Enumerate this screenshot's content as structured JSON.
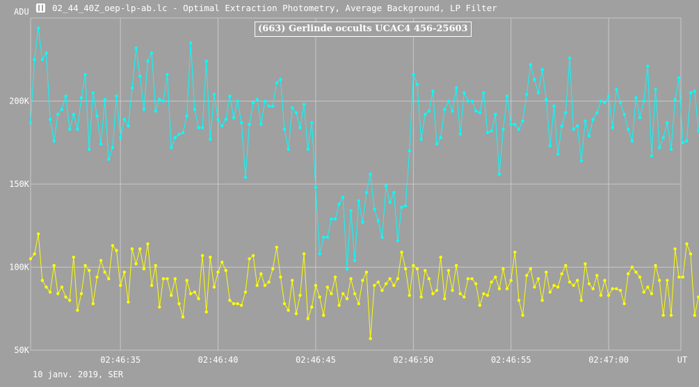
{
  "header": {
    "title": "02_44_40Z_oep-lp-ab.lc - Optimal Extraction Photometry, Average Background, LP Filter",
    "icon": "lightcurve-app-icon"
  },
  "footer": {
    "text": "10 janv. 2019, SER"
  },
  "colors": {
    "background": "#a0a0a0",
    "grid": "#c8c8c8",
    "series_cyan": "#00ffff",
    "series_yellow": "#ffff00",
    "text": "#ffffff"
  },
  "chart_data": {
    "type": "line",
    "title": "(663) Gerlinde occults UCAC4 456-25603",
    "ylabel": "ADU",
    "xlabel": "UT",
    "ylim": [
      50000,
      250000
    ],
    "xlim": [
      "02:46:30.4",
      "02:47:03.7"
    ],
    "x_ticks": [
      "02:46:35",
      "02:46:40",
      "02:46:45",
      "02:46:50",
      "02:46:55",
      "02:47:00"
    ],
    "y_ticks": [
      {
        "value": 50000,
        "label": "50K"
      },
      {
        "value": 100000,
        "label": "100K"
      },
      {
        "value": 150000,
        "label": "150K"
      },
      {
        "value": 200000,
        "label": "200K"
      }
    ],
    "grid": true,
    "x_start": "02:46:30.4",
    "x_step_s": 0.2,
    "series": [
      {
        "color": "#00ffff",
        "values": [
          187000,
          225000,
          244000,
          225000,
          229000,
          189000,
          176000,
          192000,
          195000,
          203000,
          183000,
          192000,
          183000,
          202000,
          216000,
          171000,
          205000,
          191000,
          174000,
          201000,
          165000,
          172000,
          203000,
          178000,
          189000,
          185000,
          208000,
          232000,
          215000,
          195000,
          224000,
          229000,
          194000,
          201000,
          200000,
          216000,
          172000,
          178000,
          180000,
          181000,
          191000,
          235000,
          195000,
          184000,
          184000,
          224000,
          177000,
          204000,
          189000,
          185000,
          189000,
          203000,
          190000,
          200000,
          187000,
          154000,
          186000,
          199000,
          201000,
          186000,
          200000,
          197000,
          197000,
          211000,
          213000,
          183000,
          171000,
          196000,
          193000,
          184000,
          198000,
          171000,
          187000,
          148000,
          108000,
          118000,
          118000,
          129000,
          129000,
          138000,
          142000,
          99000,
          134000,
          104000,
          140000,
          127000,
          145000,
          156000,
          135000,
          128000,
          118000,
          149000,
          139000,
          145000,
          116000,
          136000,
          137000,
          170000,
          216000,
          210000,
          177000,
          192000,
          194000,
          206000,
          174000,
          178000,
          195000,
          200000,
          194000,
          208000,
          180000,
          205000,
          200000,
          200000,
          194000,
          193000,
          205000,
          181000,
          182000,
          192000,
          156000,
          183000,
          203000,
          186000,
          186000,
          183000,
          188000,
          204000,
          222000,
          213000,
          205000,
          219000,
          201000,
          173000,
          197000,
          168000,
          185000,
          193000,
          226000,
          183000,
          185000,
          164000,
          188000,
          179000,
          189000,
          193000,
          200000,
          199000,
          203000,
          184000,
          207000,
          199000,
          192000,
          183000,
          176000,
          202000,
          190000,
          200000,
          221000,
          167000,
          207000,
          172000,
          178000,
          187000,
          171000,
          201000,
          214000,
          175000,
          176000,
          205000,
          206000,
          182000,
          177000
        ]
      },
      {
        "color": "#ffff00",
        "values": [
          105000,
          108000,
          120000,
          92000,
          88000,
          85000,
          101000,
          84000,
          88000,
          82000,
          80000,
          106000,
          74000,
          84000,
          101000,
          98000,
          78000,
          94000,
          104000,
          97000,
          93000,
          113000,
          110000,
          89000,
          97000,
          79000,
          111000,
          102000,
          111000,
          99000,
          114000,
          89000,
          101000,
          76000,
          93000,
          93000,
          83000,
          93000,
          78000,
          70000,
          92000,
          84000,
          85000,
          81000,
          107000,
          73000,
          106000,
          88000,
          97000,
          103000,
          98000,
          80000,
          78000,
          78000,
          77000,
          85000,
          105000,
          107000,
          89000,
          96000,
          89000,
          91000,
          99000,
          112000,
          94000,
          78000,
          74000,
          92000,
          72000,
          83000,
          108000,
          69000,
          76000,
          89000,
          82000,
          71000,
          88000,
          84000,
          94000,
          77000,
          84000,
          81000,
          93000,
          84000,
          78000,
          92000,
          97000,
          57000,
          89000,
          91000,
          86000,
          90000,
          93000,
          89000,
          93000,
          109000,
          99000,
          83000,
          101000,
          99000,
          82000,
          98000,
          93000,
          84000,
          86000,
          106000,
          81000,
          98000,
          86000,
          101000,
          84000,
          82000,
          93000,
          93000,
          90000,
          77000,
          84000,
          83000,
          91000,
          94000,
          87000,
          99000,
          87000,
          92000,
          109000,
          80000,
          71000,
          95000,
          99000,
          88000,
          93000,
          80000,
          97000,
          85000,
          89000,
          88000,
          96000,
          101000,
          91000,
          89000,
          92000,
          80000,
          102000,
          90000,
          87000,
          95000,
          83000,
          92000,
          83000,
          87000,
          87000,
          86000,
          78000,
          96000,
          100000,
          97000,
          94000,
          85000,
          88000,
          84000,
          101000,
          92000,
          71000,
          92000,
          71000,
          111000,
          94000,
          94000,
          114000,
          108000,
          71000,
          82000
        ]
      }
    ]
  }
}
